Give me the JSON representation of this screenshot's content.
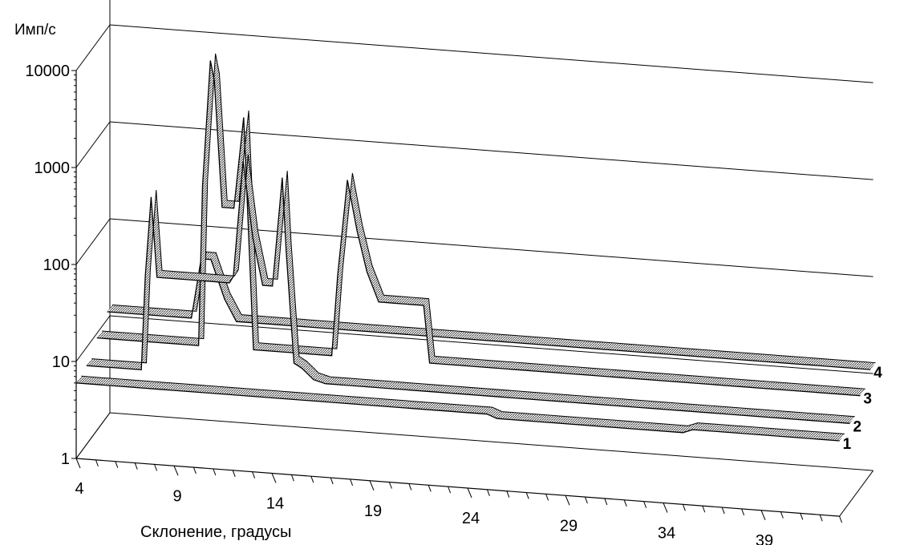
{
  "chart_data": {
    "type": "line",
    "title": "",
    "ylabel": "Имп/с",
    "xlabel": "Склонение, градусы",
    "y_scale": "log",
    "ylim": [
      1,
      10000
    ],
    "xlim": [
      4,
      43
    ],
    "y_ticks": [
      "1",
      "10",
      "100",
      "1000",
      "10000"
    ],
    "x_ticks": [
      "4",
      "9",
      "14",
      "19",
      "24",
      "29",
      "34",
      "39"
    ],
    "grid": true,
    "series": [
      {
        "name": "1",
        "x": [
          4,
          8.5,
          9,
          25,
          25.5,
          35,
          35.5,
          43
        ],
        "y": [
          6,
          6,
          6,
          6,
          5.5,
          5.5,
          6,
          6
        ]
      },
      {
        "name": "2",
        "x": [
          4,
          6.8,
          7.0,
          7.3,
          7.6,
          11.3,
          11.5,
          12.0,
          12.5,
          13.0,
          13.5,
          14.0,
          14.2,
          14.6,
          15.0,
          15.6,
          16.2,
          17.1,
          17.4,
          43
        ],
        "y": [
          6.5,
          6.5,
          60,
          400,
          60,
          60,
          70,
          1100,
          180,
          60,
          60,
          800,
          140,
          10,
          9,
          7,
          6.5,
          6.5,
          6.5,
          6.5
        ]
      },
      {
        "name": "3",
        "x": [
          4,
          9.2,
          9.4,
          9.6,
          9.8,
          10.0,
          10.4,
          11.0,
          11.5,
          12.0,
          16.0,
          16.3,
          16.8,
          17.3,
          17.8,
          18.4,
          19.2,
          20.7,
          21.0,
          43
        ],
        "y": [
          9,
          9,
          400,
          1800,
          8000,
          5000,
          250,
          250,
          2200,
          9,
          9,
          60,
          600,
          180,
          70,
          35,
          35,
          35,
          9,
          9
        ]
      },
      {
        "name": "4",
        "x": [
          4,
          8.3,
          8.8,
          9.3,
          10.0,
          10.6,
          20.5,
          21,
          43
        ],
        "y": [
          12,
          12,
          50,
          50,
          20,
          12,
          12,
          12,
          12
        ]
      }
    ]
  }
}
